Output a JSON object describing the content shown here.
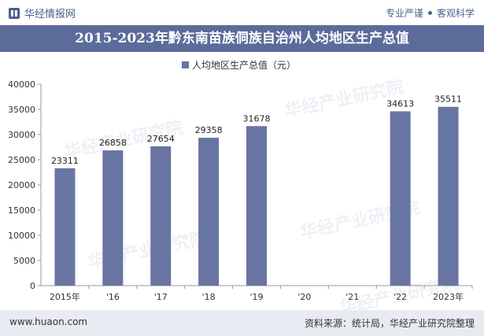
{
  "header": {
    "brand_name": "华经情报网",
    "slogan_left": "专业严谨",
    "slogan_right": "客观科学"
  },
  "watermark": "华经产业研究院",
  "footer": {
    "website": "www.huaon.com",
    "source": "资料来源：统计局，华经产业研究院整理"
  },
  "colors": {
    "bar": "#6875a3",
    "title_bg": "#5b6b9a",
    "footer_bg": "#e8ebf2"
  },
  "chart_data": {
    "type": "bar",
    "title": "2015-2023年黔东南苗族侗族自治州人均地区生产总值",
    "legend": {
      "label": "人均地区生产总值（元）",
      "position": "top-center"
    },
    "categories": [
      "2015年",
      "'16",
      "'17",
      "'18",
      "'19",
      "'20",
      "'21",
      "'22",
      "2023年"
    ],
    "series": [
      {
        "name": "人均地区生产总值（元）",
        "values": [
          23311,
          26858,
          27654,
          29358,
          31678,
          null,
          null,
          34613,
          35511
        ]
      }
    ],
    "y_ticks": [
      0,
      5000,
      10000,
      15000,
      20000,
      25000,
      30000,
      35000,
      40000
    ],
    "ylim": [
      0,
      40000
    ],
    "grid": false
  }
}
